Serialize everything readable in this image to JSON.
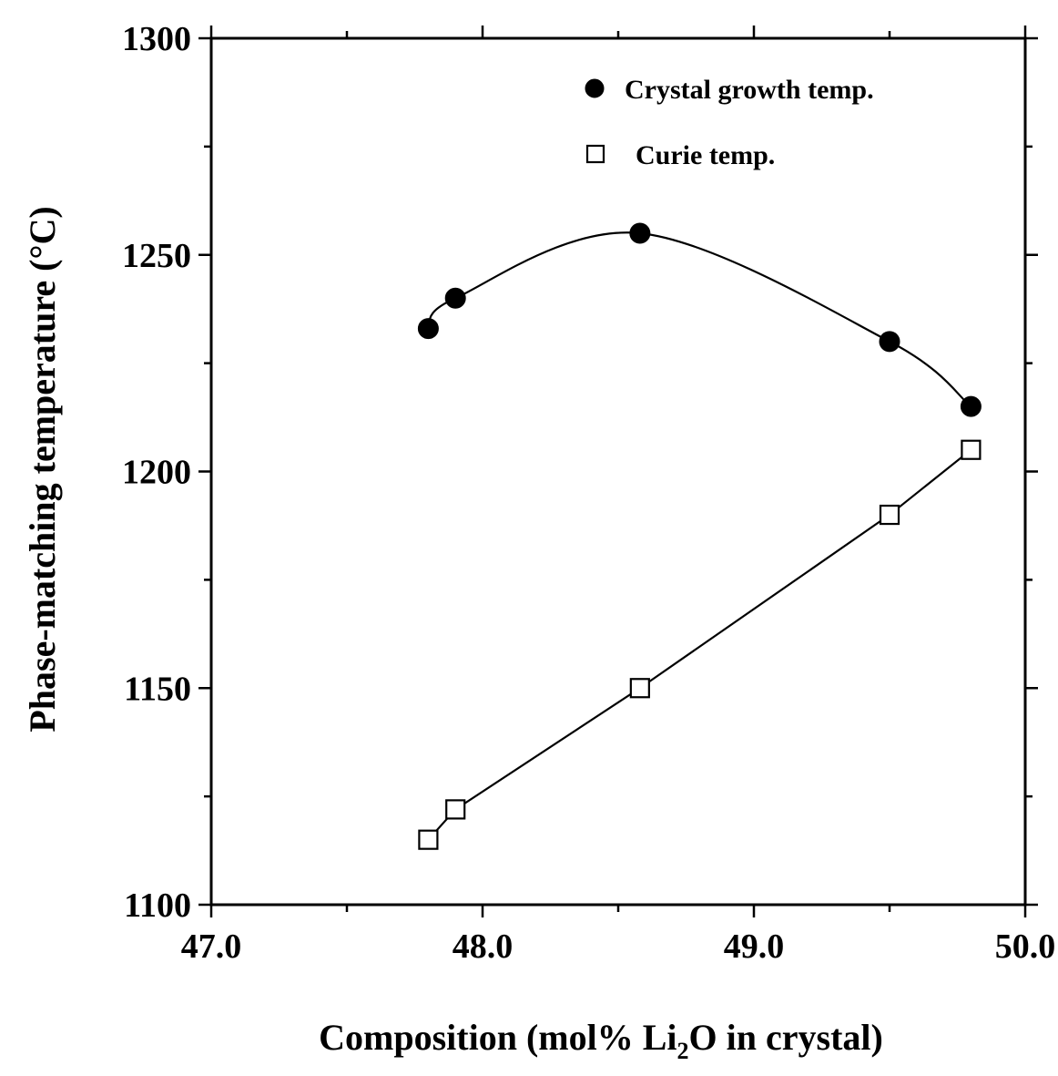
{
  "chart_data": {
    "type": "scatter",
    "title": "",
    "xlabel": "Composition (mol% Li",
    "xlabel_sub": "2",
    "xlabel_tail": "O in crystal)",
    "ylabel": "Phase-matching temperature (°C)",
    "xlim": [
      47.0,
      50.0
    ],
    "ylim": [
      1100,
      1300
    ],
    "x_ticks": [
      47.0,
      48.0,
      49.0,
      50.0
    ],
    "x_tick_labels": [
      "47.0",
      "48.0",
      "49.0",
      "50.0"
    ],
    "y_ticks": [
      1100,
      1150,
      1200,
      1250,
      1300
    ],
    "y_tick_labels": [
      "1100",
      "1150",
      "1200",
      "1250",
      "1300"
    ],
    "grid": false,
    "legend_position": "top-right",
    "series": [
      {
        "name": "Crystal growth temp.",
        "marker": "filled-circle",
        "curve": "smooth",
        "x": [
          47.8,
          47.9,
          48.58,
          49.5,
          49.8
        ],
        "y": [
          1233,
          1240,
          1255,
          1230,
          1215
        ]
      },
      {
        "name": "Curie temp.",
        "marker": "open-square",
        "curve": "line",
        "x": [
          47.8,
          47.9,
          48.58,
          49.5,
          49.8
        ],
        "y": [
          1115,
          1122,
          1150,
          1190,
          1205
        ]
      }
    ]
  }
}
